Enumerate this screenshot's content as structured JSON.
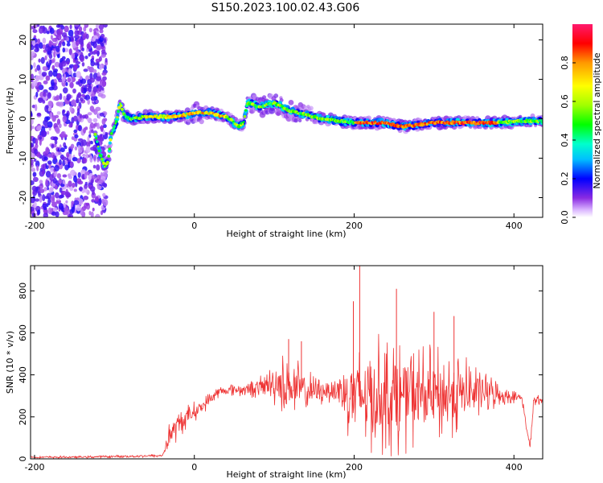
{
  "title": "S150.2023.100.02.43.G06",
  "colors": {
    "snr_line": "#ee3333",
    "axis": "#000000",
    "background": "#ffffff"
  },
  "colormap": [
    "#ffffff",
    "#d9b3ff",
    "#8a2be2",
    "#3a00ff",
    "#0000ff",
    "#00bfff",
    "#00ffcc",
    "#00ff00",
    "#a0ff00",
    "#ffff00",
    "#ff9900",
    "#ff0000",
    "#ff1a6e"
  ],
  "chart_data": [
    {
      "type": "heatmap",
      "xlabel": "Height of straight line (km)",
      "ylabel": "Frequency (Hz)",
      "xlim": [
        -205,
        436
      ],
      "ylim": [
        -25,
        24
      ],
      "xticks": [
        -200,
        0,
        200,
        400
      ],
      "yticks": [
        -20,
        -10,
        0,
        10,
        20
      ],
      "noise_region_x": [
        -205,
        -110
      ],
      "ridge": {
        "x": [
          -124,
          -118,
          -112,
          -108,
          -104,
          -98,
          -93,
          -88,
          -80,
          -60,
          -30,
          -10,
          0,
          20,
          40,
          50,
          56,
          62,
          66,
          70,
          80,
          100,
          120,
          140,
          160,
          180,
          200,
          220,
          240,
          260,
          300,
          340,
          380,
          420,
          436
        ],
        "y": [
          -4,
          -9,
          -12,
          -11,
          -4,
          -1,
          4,
          1,
          0,
          0.5,
          0.5,
          1,
          1.5,
          1.5,
          0.5,
          -1,
          -2,
          -1,
          4,
          4,
          3,
          4,
          2,
          1,
          0,
          -0.5,
          -1,
          -1,
          -1,
          -2,
          -1,
          -1,
          -1,
          -0.5,
          -0.5
        ]
      },
      "colorbar": {
        "label": "Normalized spectral amplitude",
        "range": [
          0,
          1
        ],
        "ticks": [
          0.0,
          0.2,
          0.4,
          0.6,
          0.8
        ]
      }
    },
    {
      "type": "line",
      "xlabel": "Height of straight line (km)",
      "ylabel": "SNR (10 * v/v)",
      "xlim": [
        -205,
        436
      ],
      "ylim": [
        0,
        920
      ],
      "xticks": [
        -200,
        0,
        200,
        400
      ],
      "yticks": [
        0,
        200,
        400,
        600,
        800
      ],
      "envelope": {
        "x": [
          -205,
          -150,
          -40,
          -30,
          -10,
          10,
          30,
          50,
          70,
          90,
          110,
          130,
          150,
          170,
          200,
          230,
          260,
          300,
          330,
          360,
          390,
          410,
          420,
          425,
          436
        ],
        "center": [
          8,
          8,
          15,
          120,
          200,
          250,
          320,
          330,
          330,
          350,
          360,
          330,
          320,
          330,
          300,
          300,
          300,
          300,
          310,
          320,
          300,
          290,
          50,
          280,
          270
        ],
        "spread": [
          6,
          6,
          8,
          80,
          60,
          40,
          30,
          30,
          40,
          60,
          150,
          150,
          80,
          60,
          260,
          300,
          280,
          240,
          200,
          120,
          40,
          20,
          20,
          30,
          30
        ]
      },
      "peaks": [
        {
          "x": 207,
          "y": 920
        },
        {
          "x": 199,
          "y": 750
        },
        {
          "x": 253,
          "y": 810
        },
        {
          "x": 300,
          "y": 700
        },
        {
          "x": 325,
          "y": 680
        },
        {
          "x": 118,
          "y": 570
        },
        {
          "x": 134,
          "y": 560
        }
      ]
    }
  ]
}
